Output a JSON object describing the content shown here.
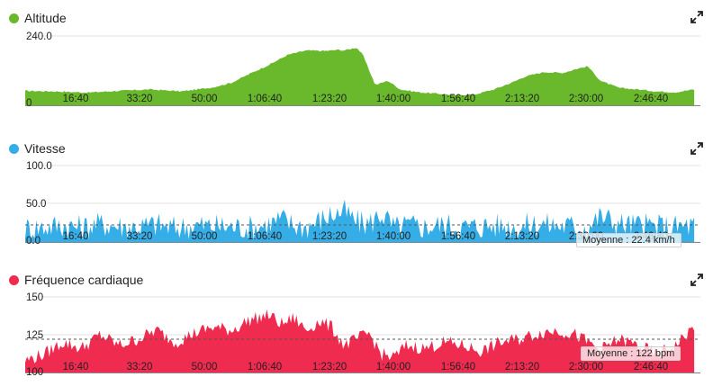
{
  "panels": [
    {
      "id": "altitude",
      "title": "Altitude",
      "color": "#6ab82b",
      "icon": "expand-icon",
      "y_labels": [
        "240.0",
        "0"
      ],
      "average_label": ""
    },
    {
      "id": "vitesse",
      "title": "Vitesse",
      "color": "#35aee8",
      "icon": "expand-icon",
      "y_labels": [
        "100.0",
        "50.0",
        "0.0"
      ],
      "average_label": "Moyenne : 22.4 km/h"
    },
    {
      "id": "frequence",
      "title": "Fréquence cardiaque",
      "color": "#ef2b50",
      "icon": "expand-icon",
      "y_labels": [
        "150",
        "125",
        "100"
      ],
      "average_label": "Moyenne : 122 bpm"
    }
  ],
  "chart_data": [
    {
      "type": "area",
      "series_color": "#6ab82b",
      "x_tick_labels": [
        "16:40",
        "33:20",
        "50:00",
        "1:06:40",
        "1:23:20",
        "1:40:00",
        "1:56:40",
        "2:13:20",
        "2:30:00",
        "2:46:40"
      ],
      "ylim": [
        0,
        240
      ],
      "x": [
        0,
        500,
        1000,
        1500,
        2000,
        2500,
        3000,
        3300,
        3600,
        3900,
        4200,
        4500,
        4800,
        5000,
        5100,
        5200,
        5300,
        5400,
        5600,
        5800,
        6000,
        6300,
        6600,
        6900,
        7200,
        7500,
        7800,
        8000,
        8300,
        8600,
        8800,
        9000,
        9200,
        9500,
        9800,
        10100,
        10400,
        10700
      ],
      "values": [
        50,
        48,
        44,
        50,
        55,
        48,
        62,
        78,
        110,
        140,
        175,
        190,
        188,
        192,
        190,
        195,
        200,
        175,
        70,
        85,
        55,
        45,
        40,
        35,
        38,
        55,
        80,
        100,
        115,
        112,
        125,
        135,
        85,
        60,
        55,
        48,
        45,
        55
      ]
    },
    {
      "type": "area",
      "series_color": "#35aee8",
      "x_tick_labels": [
        "16:40",
        "33:20",
        "50:00",
        "1:06:40",
        "1:23:20",
        "1:40:00",
        "1:56:40",
        "2:13:20",
        "2:30:00",
        "2:46:40"
      ],
      "ylim": [
        0,
        100
      ],
      "average": 22.4,
      "x": [
        0,
        300,
        600,
        900,
        1200,
        1500,
        1800,
        2100,
        2400,
        2700,
        3000,
        3300,
        3600,
        3900,
        4100,
        4300,
        4500,
        4700,
        4900,
        5100,
        5300,
        5500,
        5700,
        5900,
        6100,
        6400,
        6700,
        7000,
        7300,
        7600,
        7900,
        8200,
        8500,
        8800,
        9000,
        9200,
        9500,
        9800,
        10100,
        10400,
        10700
      ],
      "values": [
        18,
        20,
        22,
        19,
        24,
        21,
        20,
        23,
        18,
        22,
        21,
        20,
        19,
        24,
        30,
        22,
        20,
        28,
        36,
        40,
        26,
        24,
        38,
        18,
        22,
        20,
        23,
        19,
        21,
        22,
        20,
        24,
        22,
        21,
        20,
        34,
        24,
        22,
        21,
        20,
        22
      ]
    },
    {
      "type": "area",
      "series_color": "#ef2b50",
      "x_tick_labels": [
        "16:40",
        "33:20",
        "50:00",
        "1:06:40",
        "1:23:20",
        "1:40:00",
        "1:56:40",
        "2:13:20",
        "2:30:00",
        "2:46:40"
      ],
      "ylim": [
        100,
        150
      ],
      "average": 122,
      "x": [
        0,
        300,
        600,
        900,
        1200,
        1500,
        1800,
        2100,
        2400,
        2700,
        3000,
        3300,
        3600,
        3900,
        4100,
        4300,
        4500,
        4700,
        4900,
        5100,
        5300,
        5500,
        5700,
        5900,
        6100,
        6400,
        6700,
        7000,
        7300,
        7600,
        7900,
        8200,
        8500,
        8800,
        9000,
        9200,
        9500,
        9800,
        10100,
        10400,
        10700
      ],
      "values": [
        108,
        112,
        120,
        116,
        125,
        118,
        122,
        128,
        120,
        126,
        130,
        128,
        135,
        138,
        132,
        136,
        128,
        134,
        130,
        118,
        122,
        126,
        112,
        110,
        118,
        116,
        120,
        118,
        114,
        120,
        122,
        126,
        128,
        125,
        120,
        115,
        122,
        118,
        112,
        118,
        130
      ]
    }
  ]
}
